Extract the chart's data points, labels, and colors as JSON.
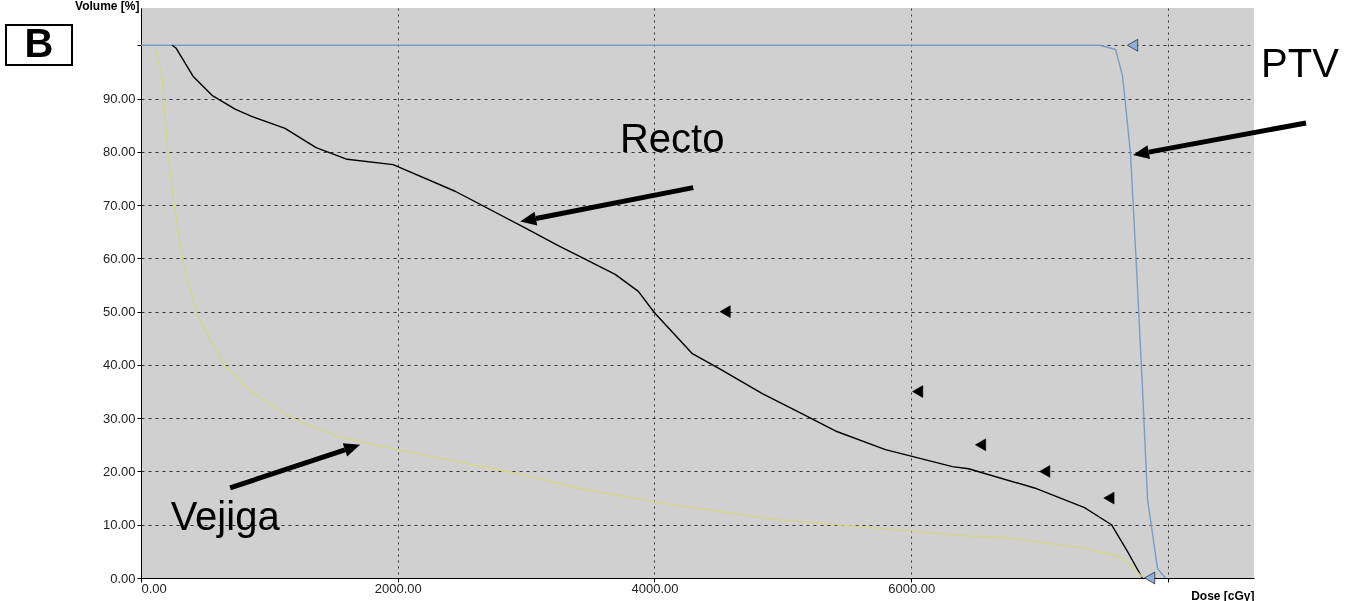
{
  "chart_data": {
    "type": "line",
    "xlabel": "Dose [cGy]",
    "ylabel": "Volume [%]",
    "xlim": [
      0,
      8670
    ],
    "ylim": [
      0,
      107
    ],
    "xticks": [
      {
        "value": 0,
        "label": "0.00"
      },
      {
        "value": 2000,
        "label": "2000.00"
      },
      {
        "value": 4000,
        "label": "4000.00"
      },
      {
        "value": 6000,
        "label": "6000.00"
      },
      {
        "value": 8000,
        "label": null
      }
    ],
    "yticks": [
      {
        "value": 0,
        "label": "0.00"
      },
      {
        "value": 10,
        "label": "10.00"
      },
      {
        "value": 20,
        "label": "20.00"
      },
      {
        "value": 30,
        "label": "30.00"
      },
      {
        "value": 40,
        "label": "40.00"
      },
      {
        "value": 50,
        "label": "50.00"
      },
      {
        "value": 60,
        "label": "60.00"
      },
      {
        "value": 70,
        "label": "70.00"
      },
      {
        "value": 80,
        "label": "80.00"
      },
      {
        "value": 90,
        "label": "90.00"
      },
      {
        "value": 100,
        "label": null
      }
    ],
    "grid": true,
    "line_style": "solid",
    "marker": "none",
    "series": [
      {
        "color": "#7b9cc4",
        "x": [
          0,
          7467,
          7592,
          7646,
          7708,
          7755,
          7800,
          7841,
          7919,
          7981
        ],
        "values": [
          100,
          100,
          99.2,
          94.2,
          79.7,
          58.1,
          36.3,
          14.7,
          1.7,
          0
        ]
      },
      {
        "color": "#000000",
        "x": [
          242,
          272,
          405,
          553,
          733,
          857,
          1122,
          1364,
          1606,
          1964,
          2447,
          2970,
          3250,
          3694,
          3874,
          4000,
          4295,
          4505,
          4840,
          5136,
          5409,
          5799,
          6321,
          6446,
          6960,
          7350,
          7560,
          7677,
          7800
        ],
        "values": [
          100,
          99.5,
          94.2,
          90.6,
          88,
          86.7,
          84.4,
          80.8,
          78.6,
          77.6,
          72.6,
          66,
          62.4,
          57,
          53.8,
          49.8,
          42.1,
          39.3,
          34.6,
          31,
          27.6,
          24.1,
          20.9,
          20.5,
          16.9,
          13.2,
          10,
          5.3,
          0
        ]
      },
      {
        "color": "#d4d68a",
        "x": [
          109,
          164,
          210,
          257,
          327,
          436,
          647,
          857,
          1185,
          1543,
          1995,
          2970,
          3398,
          4000,
          4895,
          6009,
          6321,
          6750,
          7350,
          7646,
          7800
        ],
        "values": [
          99.6,
          94.2,
          79.7,
          70.3,
          59.4,
          49.4,
          40,
          35,
          29.9,
          26.5,
          24.1,
          19.4,
          16.9,
          14.3,
          11.1,
          8.8,
          8.1,
          7.5,
          5.6,
          3.8,
          0.2
        ]
      },
      {
        "type": "scatter",
        "marker": "triangle",
        "color": "#000000",
        "x": [
          4550,
          6050,
          6540,
          7040,
          7540
        ],
        "values": [
          50,
          35,
          25,
          20,
          15
        ]
      },
      {
        "type": "scatter",
        "marker": "triangle",
        "color": "#8fb0dc",
        "x": [
          7724,
          7857
        ],
        "values": [
          100,
          0
        ]
      }
    ],
    "annotations": [
      "B",
      {
        "text": "Recto",
        "x": 2954,
        "y": 66.9
      },
      {
        "text": "Vejiga",
        "x": 1707,
        "y": 25
      },
      "PTV"
    ]
  }
}
